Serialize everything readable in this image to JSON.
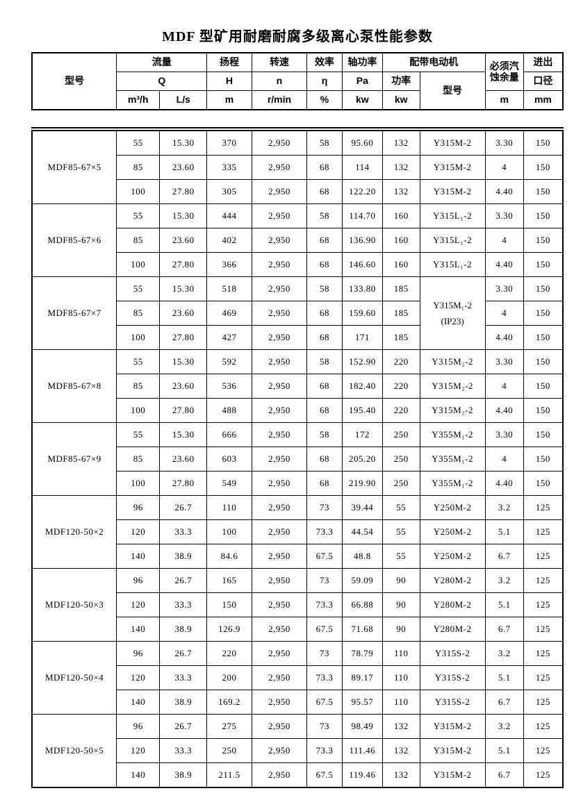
{
  "title": "MDF 型矿用耐磨耐腐多级离心泵性能参数",
  "header": {
    "model": "型号",
    "flow": "流量",
    "flow_q": "Q",
    "flow_m3h": "m³/h",
    "flow_ls": "L/s",
    "head": "扬程",
    "head_h": "H",
    "head_m": "m",
    "speed": "转速",
    "speed_n": "n",
    "speed_unit": "r/min",
    "eff": "效率",
    "eff_eta": "η",
    "eff_unit": "%",
    "shaft": "轴功率",
    "shaft_pa": "Pa",
    "shaft_unit": "kw",
    "motor": "配带电动机",
    "motor_power": "功率",
    "motor_power_unit": "kw",
    "motor_model": "型号",
    "npsh_line1": "必须汽",
    "npsh_line2": "蚀余量",
    "npsh_unit": "m",
    "dia_line1": "进出",
    "dia_line2": "口径",
    "dia_unit": "mm"
  },
  "groups": [
    {
      "model": "MDF85-67×5",
      "motor_span": false,
      "motor_lines": [
        "Y315M-2"
      ],
      "rows": [
        [
          "55",
          "15.30",
          "370",
          "2,950",
          "58",
          "95.60",
          "132",
          "3.30",
          "150"
        ],
        [
          "85",
          "23.60",
          "335",
          "2,950",
          "68",
          "114",
          "132",
          "4",
          "150"
        ],
        [
          "100",
          "27.80",
          "305",
          "2,950",
          "68",
          "122.20",
          "132",
          "4.40",
          "150"
        ]
      ]
    },
    {
      "model": "MDF85-67×6",
      "motor_span": false,
      "motor_lines": [
        "Y315L₁-2"
      ],
      "rows": [
        [
          "55",
          "15.30",
          "444",
          "2,950",
          "58",
          "114.70",
          "160",
          "3.30",
          "150"
        ],
        [
          "85",
          "23.60",
          "402",
          "2,950",
          "68",
          "136.90",
          "160",
          "4",
          "150"
        ],
        [
          "100",
          "27.80",
          "366",
          "2,950",
          "68",
          "146.60",
          "160",
          "4.40",
          "150"
        ]
      ]
    },
    {
      "model": "MDF85-67×7",
      "motor_span": true,
      "motor_lines": [
        "Y315M₁-2",
        "(IP23)"
      ],
      "rows": [
        [
          "55",
          "15.30",
          "518",
          "2,950",
          "58",
          "133.80",
          "185",
          "3.30",
          "150"
        ],
        [
          "85",
          "23.60",
          "469",
          "2,950",
          "68",
          "159.60",
          "185",
          "4",
          "150"
        ],
        [
          "100",
          "27.80",
          "427",
          "2,950",
          "68",
          "171",
          "185",
          "4.40",
          "150"
        ]
      ]
    },
    {
      "model": "MDF85-67×8",
      "motor_span": false,
      "motor_lines": [
        "Y315M₂-2"
      ],
      "rows": [
        [
          "55",
          "15.30",
          "592",
          "2,950",
          "58",
          "152.90",
          "220",
          "3.30",
          "150"
        ],
        [
          "85",
          "23.60",
          "536",
          "2,950",
          "68",
          "182.40",
          "220",
          "4",
          "150"
        ],
        [
          "100",
          "27.80",
          "488",
          "2,950",
          "68",
          "195.40",
          "220",
          "4.40",
          "150"
        ]
      ]
    },
    {
      "model": "MDF85-67×9",
      "motor_span": false,
      "motor_lines": [
        "Y355M₁-2"
      ],
      "rows": [
        [
          "55",
          "15.30",
          "666",
          "2,950",
          "58",
          "172",
          "250",
          "3.30",
          "150"
        ],
        [
          "85",
          "23.60",
          "603",
          "2,950",
          "68",
          "205.20",
          "250",
          "4",
          "150"
        ],
        [
          "100",
          "27.80",
          "549",
          "2,950",
          "68",
          "219.90",
          "250",
          "4.40",
          "150"
        ]
      ]
    },
    {
      "model": "MDF120-50×2",
      "motor_span": false,
      "motor_lines": [
        "Y250M-2"
      ],
      "rows": [
        [
          "96",
          "26.7",
          "110",
          "2,950",
          "73",
          "39.44",
          "55",
          "3.2",
          "125"
        ],
        [
          "120",
          "33.3",
          "100",
          "2,950",
          "73.3",
          "44.54",
          "55",
          "5.1",
          "125"
        ],
        [
          "140",
          "38.9",
          "84.6",
          "2,950",
          "67.5",
          "48.8",
          "55",
          "6.7",
          "125"
        ]
      ]
    },
    {
      "model": "MDF120-50×3",
      "motor_span": false,
      "motor_lines": [
        "Y280M-2"
      ],
      "rows": [
        [
          "96",
          "26.7",
          "165",
          "2,950",
          "73",
          "59.09",
          "90",
          "3.2",
          "125"
        ],
        [
          "120",
          "33.3",
          "150",
          "2,950",
          "73.3",
          "66.88",
          "90",
          "5.1",
          "125"
        ],
        [
          "140",
          "38.9",
          "126.9",
          "2,950",
          "67.5",
          "71.68",
          "90",
          "6.7",
          "125"
        ]
      ]
    },
    {
      "model": "MDF120-50×4",
      "motor_span": false,
      "motor_lines": [
        "Y315S-2"
      ],
      "rows": [
        [
          "96",
          "26.7",
          "220",
          "2,950",
          "73",
          "78.79",
          "110",
          "3.2",
          "125"
        ],
        [
          "120",
          "33.3",
          "200",
          "2,950",
          "73.3",
          "89.17",
          "110",
          "5.1",
          "125"
        ],
        [
          "140",
          "38.9",
          "169.2",
          "2,950",
          "67.5",
          "95.57",
          "110",
          "6.7",
          "125"
        ]
      ]
    },
    {
      "model": "MDF120-50×5",
      "motor_span": false,
      "motor_lines": [
        "Y315M-2"
      ],
      "rows": [
        [
          "96",
          "26.7",
          "275",
          "2,950",
          "73",
          "98.49",
          "132",
          "3.2",
          "125"
        ],
        [
          "120",
          "33.3",
          "250",
          "2,950",
          "73.3",
          "111.46",
          "132",
          "5.1",
          "125"
        ],
        [
          "140",
          "38.9",
          "211.5",
          "2,950",
          "67.5",
          "119.46",
          "132",
          "6.7",
          "125"
        ]
      ]
    }
  ]
}
